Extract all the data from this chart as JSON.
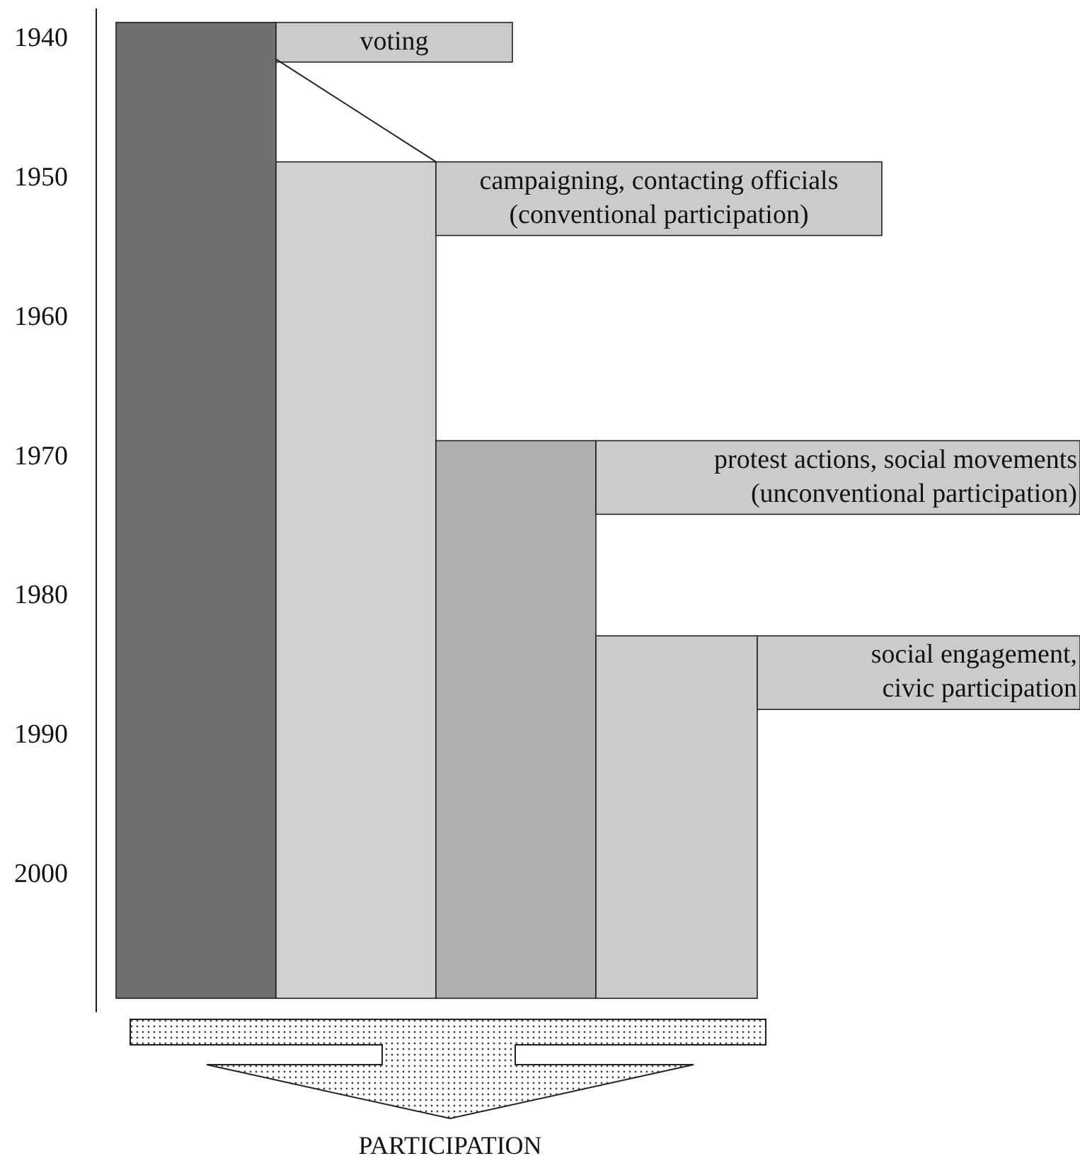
{
  "chart_data": {
    "type": "bar",
    "categories": [
      null,
      null,
      null,
      null
    ],
    "base": [
      1939,
      1949,
      1969,
      1983
    ],
    "values": [
      70,
      60,
      40,
      26
    ],
    "colors": [
      "#707070",
      "#d0d0d0",
      "#b0b0b0",
      "#cbcbcb"
    ],
    "ylim": [
      2010,
      1938
    ],
    "yticks": [
      1940,
      1950,
      1960,
      1970,
      1980,
      1990,
      2000
    ],
    "grid": false,
    "xlabel": "PARTICIPATION",
    "annotations": [
      "voting",
      "campaigning, contacting officials\n(conventional participation)",
      "protest actions, social movements\n(unconventional participation)",
      "social engagement,\ncivic participation"
    ]
  }
}
